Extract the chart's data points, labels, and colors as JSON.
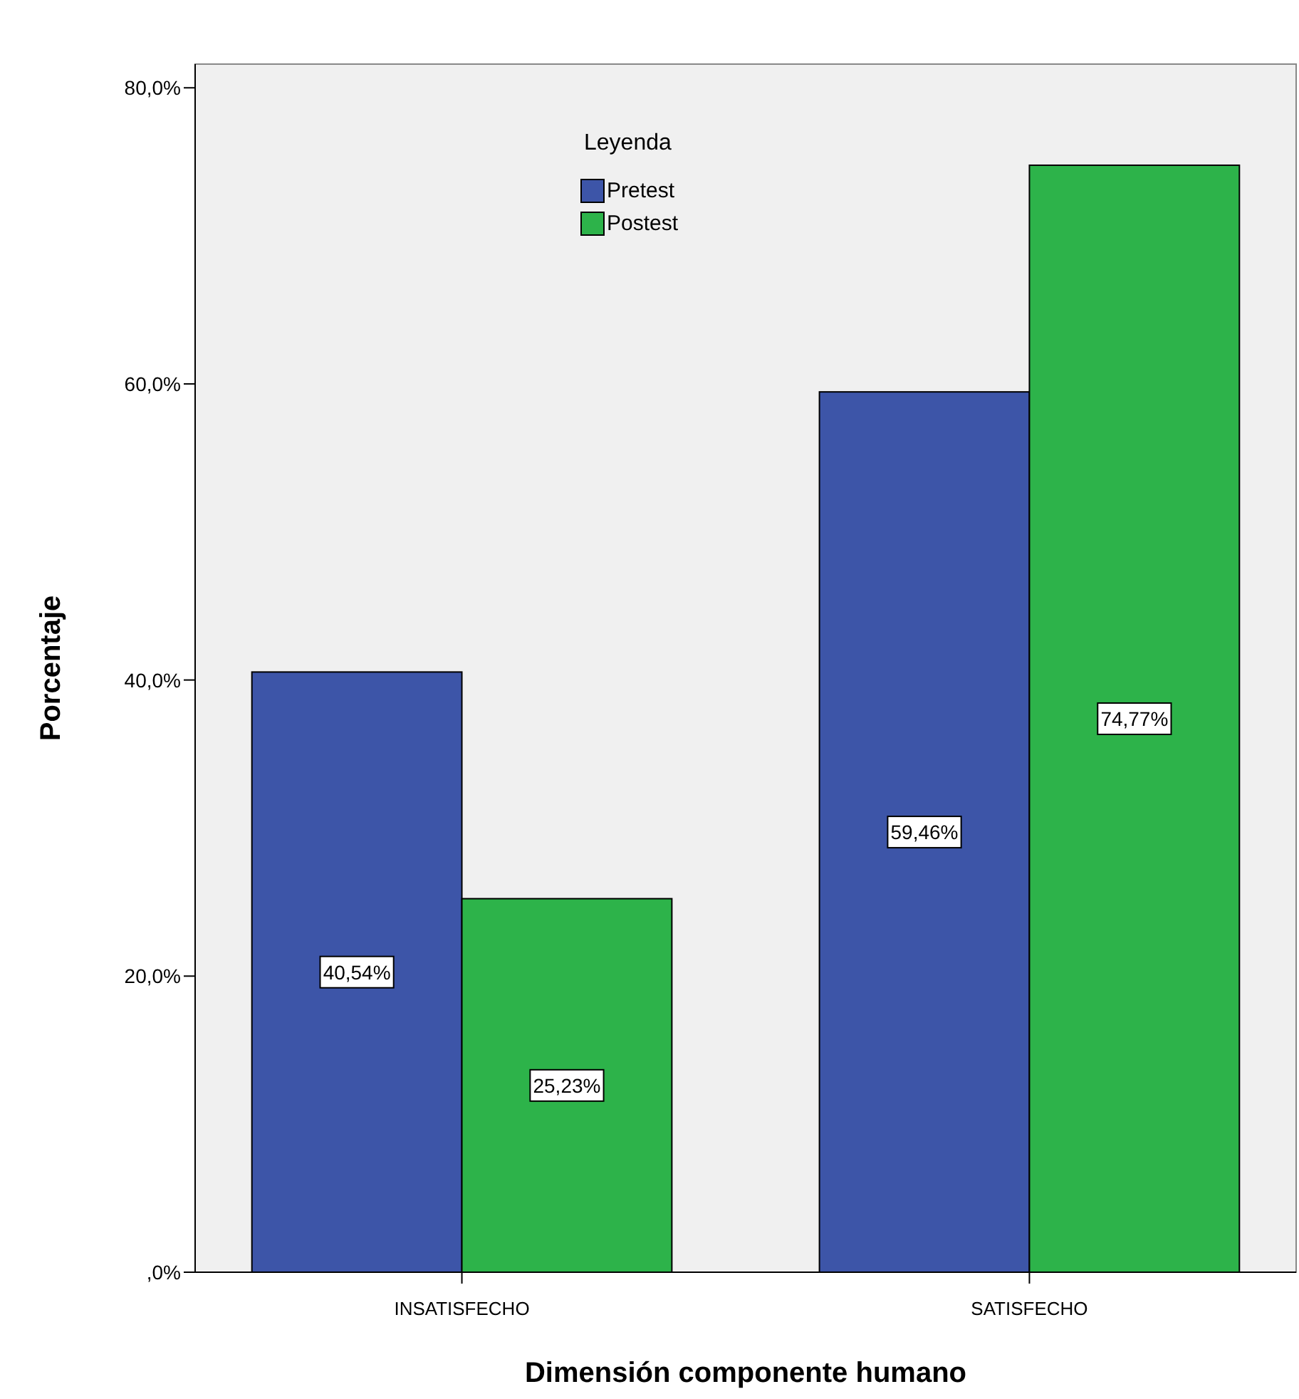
{
  "chart_data": {
    "type": "bar",
    "xlabel": "Dimensión componente humano",
    "ylabel": "Porcentaje",
    "legend_title": "Leyenda",
    "legend": "top",
    "categories": [
      "INSATISFECHO",
      "SATISFECHO"
    ],
    "series": [
      {
        "name": "Pretest",
        "color": "#3d55a8",
        "values": [
          40.54,
          59.46
        ],
        "value_labels": [
          "40,54%",
          "59,46%"
        ]
      },
      {
        "name": "Postest",
        "color": "#2db34a",
        "values": [
          25.23,
          74.77
        ],
        "value_labels": [
          "25,23%",
          "74,77%"
        ]
      }
    ],
    "ylim": [
      0,
      81.6
    ],
    "yticks": [
      {
        "value": 0,
        "label": ",0%"
      },
      {
        "value": 20,
        "label": "20,0%"
      },
      {
        "value": 40,
        "label": "40,0%"
      },
      {
        "value": 60,
        "label": "60,0%"
      },
      {
        "value": 80,
        "label": "80,0%"
      }
    ]
  }
}
